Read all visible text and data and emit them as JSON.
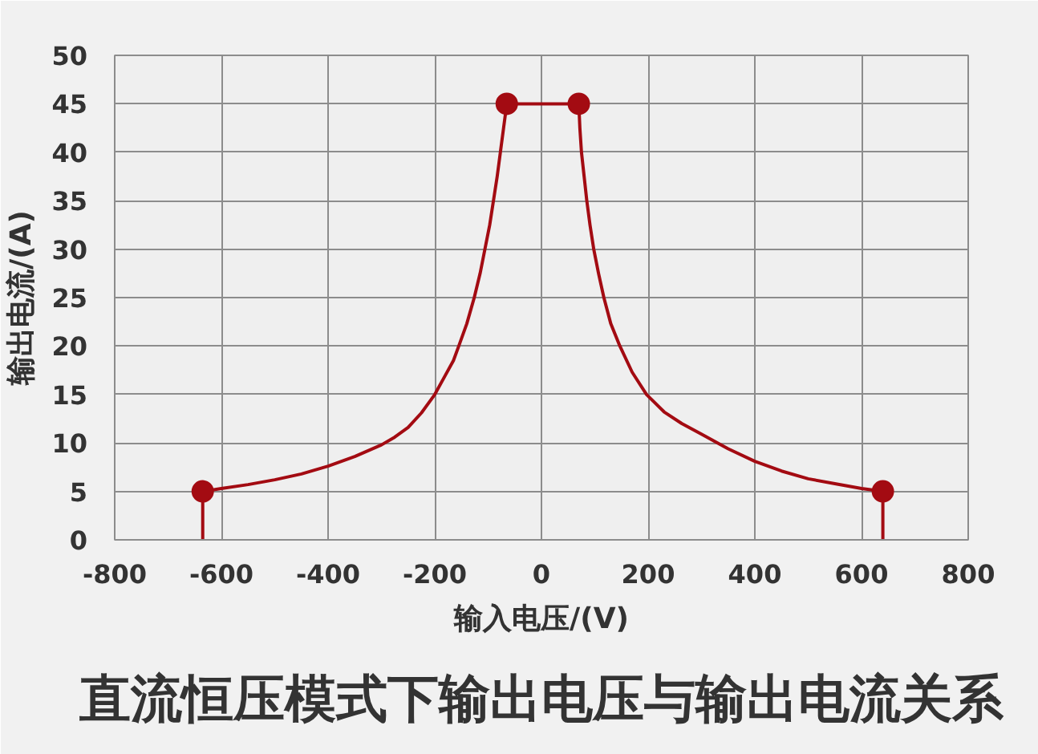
{
  "chart_data": {
    "type": "line",
    "title": "直流恒压模式下输出电压与输出电流关系",
    "xlabel": "输入电压/(V)",
    "ylabel": "输出电流/(A)",
    "series": [
      {
        "color": "#a30b12",
        "x": [
          -635,
          -635,
          -600,
          -550,
          -500,
          -450,
          -400,
          -350,
          -300,
          -275,
          -250,
          -225,
          -200,
          -180,
          -165,
          -155,
          -140,
          -126,
          -115,
          -106,
          -97,
          -90,
          -83,
          -77,
          -71,
          -65,
          70,
          72,
          75,
          80,
          85,
          91,
          98,
          107,
          117,
          130,
          147,
          170,
          197,
          230,
          263,
          300,
          350,
          400,
          450,
          500,
          550,
          600,
          640,
          640
        ],
        "values": [
          0,
          5,
          5.3,
          5.7,
          6.2,
          6.8,
          7.6,
          8.6,
          9.8,
          10.6,
          11.6,
          13.1,
          15,
          17,
          18.5,
          20,
          22.3,
          25,
          27.5,
          30,
          32.5,
          35,
          37.5,
          40,
          42.5,
          45,
          45,
          42.5,
          40,
          37.5,
          35,
          32.5,
          30,
          27.5,
          25,
          22.3,
          20,
          17.3,
          15,
          13.2,
          12,
          10.9,
          9.4,
          8.1,
          7.1,
          6.3,
          5.8,
          5.3,
          5,
          0
        ]
      },
      {
        "type": "scatter",
        "color": "#a30b12",
        "marker": "circle",
        "x": [
          -635,
          -65,
          70,
          640
        ],
        "values": [
          5,
          45,
          45,
          5
        ]
      }
    ],
    "xlim": [
      -800,
      800
    ],
    "ylim": [
      0,
      50
    ],
    "xticks": [
      -800,
      -600,
      -400,
      -200,
      0,
      200,
      400,
      600,
      800
    ],
    "yticks": [
      0,
      5,
      10,
      15,
      20,
      25,
      30,
      35,
      40,
      45,
      50
    ],
    "grid": true,
    "line_style": "solid"
  }
}
